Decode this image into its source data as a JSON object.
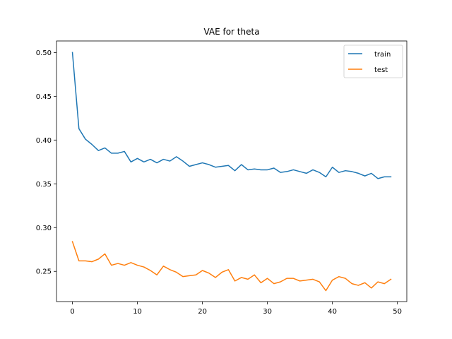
{
  "chart_data": {
    "type": "line",
    "title": "VAE for theta",
    "xlabel": "",
    "ylabel": "",
    "xlim": [
      -2.45,
      51.45
    ],
    "ylim": [
      0.2155,
      0.5132
    ],
    "xticks": [
      0,
      10,
      20,
      30,
      40,
      50
    ],
    "yticks": [
      0.25,
      0.3,
      0.35,
      0.4,
      0.45,
      0.5
    ],
    "ytick_labels": [
      "0.25",
      "0.30",
      "0.35",
      "0.40",
      "0.45",
      "0.50"
    ],
    "grid": false,
    "legend_position": "top-right",
    "x": [
      0,
      1,
      2,
      3,
      4,
      5,
      6,
      7,
      8,
      9,
      10,
      11,
      12,
      13,
      14,
      15,
      16,
      17,
      18,
      19,
      20,
      21,
      22,
      23,
      24,
      25,
      26,
      27,
      28,
      29,
      30,
      31,
      32,
      33,
      34,
      35,
      36,
      37,
      38,
      39,
      40,
      41,
      42,
      43,
      44,
      45,
      46,
      47,
      48,
      49
    ],
    "series": [
      {
        "name": "train",
        "color": "#1f77b4",
        "values": [
          0.5,
          0.413,
          0.401,
          0.395,
          0.388,
          0.391,
          0.385,
          0.385,
          0.387,
          0.375,
          0.379,
          0.375,
          0.378,
          0.374,
          0.378,
          0.376,
          0.381,
          0.376,
          0.37,
          0.372,
          0.374,
          0.372,
          0.369,
          0.37,
          0.371,
          0.365,
          0.372,
          0.366,
          0.367,
          0.366,
          0.366,
          0.368,
          0.363,
          0.364,
          0.366,
          0.364,
          0.362,
          0.366,
          0.363,
          0.358,
          0.369,
          0.363,
          0.365,
          0.364,
          0.362,
          0.359,
          0.362,
          0.356,
          0.358,
          0.358
        ]
      },
      {
        "name": "test",
        "color": "#ff7f0e",
        "values": [
          0.284,
          0.262,
          0.262,
          0.261,
          0.264,
          0.27,
          0.257,
          0.259,
          0.257,
          0.26,
          0.257,
          0.255,
          0.251,
          0.246,
          0.256,
          0.252,
          0.249,
          0.244,
          0.245,
          0.246,
          0.251,
          0.248,
          0.243,
          0.249,
          0.252,
          0.239,
          0.243,
          0.241,
          0.246,
          0.237,
          0.242,
          0.236,
          0.238,
          0.242,
          0.242,
          0.239,
          0.24,
          0.241,
          0.238,
          0.228,
          0.24,
          0.244,
          0.242,
          0.236,
          0.234,
          0.237,
          0.231,
          0.238,
          0.236,
          0.241
        ]
      }
    ]
  }
}
